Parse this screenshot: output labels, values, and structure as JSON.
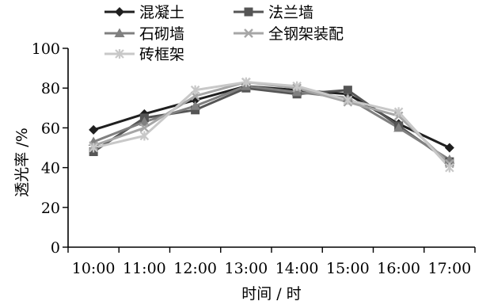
{
  "chart_data": {
    "type": "line",
    "categories": [
      "10:00",
      "11:00",
      "12:00",
      "13:00",
      "14:00",
      "15:00",
      "16:00",
      "17:00"
    ],
    "series": [
      {
        "name": "混凝土",
        "values": [
          59,
          67,
          74,
          81,
          79,
          77,
          62,
          50
        ],
        "color": "#1f1f1f",
        "marker": "diamond"
      },
      {
        "name": "法兰墙",
        "values": [
          48,
          65,
          69,
          80,
          77,
          79,
          61,
          43
        ],
        "color": "#555555",
        "marker": "square"
      },
      {
        "name": "石砌墙",
        "values": [
          53,
          63,
          71,
          81,
          78,
          75,
          60,
          44
        ],
        "color": "#808080",
        "marker": "triangle"
      },
      {
        "name": "全钢架装配",
        "values": [
          51,
          60,
          76,
          83,
          80,
          73,
          66,
          42
        ],
        "color": "#a6a6a6",
        "marker": "x"
      },
      {
        "name": "砖框架",
        "values": [
          50,
          56,
          79,
          83,
          81,
          74,
          68,
          40
        ],
        "color": "#c8c8c8",
        "marker": "star"
      }
    ],
    "xlabel": "时间 / 时",
    "ylabel": "透光率 /%",
    "ylim": [
      0,
      100
    ],
    "yticks": [
      0,
      20,
      40,
      60,
      80,
      100
    ],
    "grid": false,
    "legend": "top"
  }
}
